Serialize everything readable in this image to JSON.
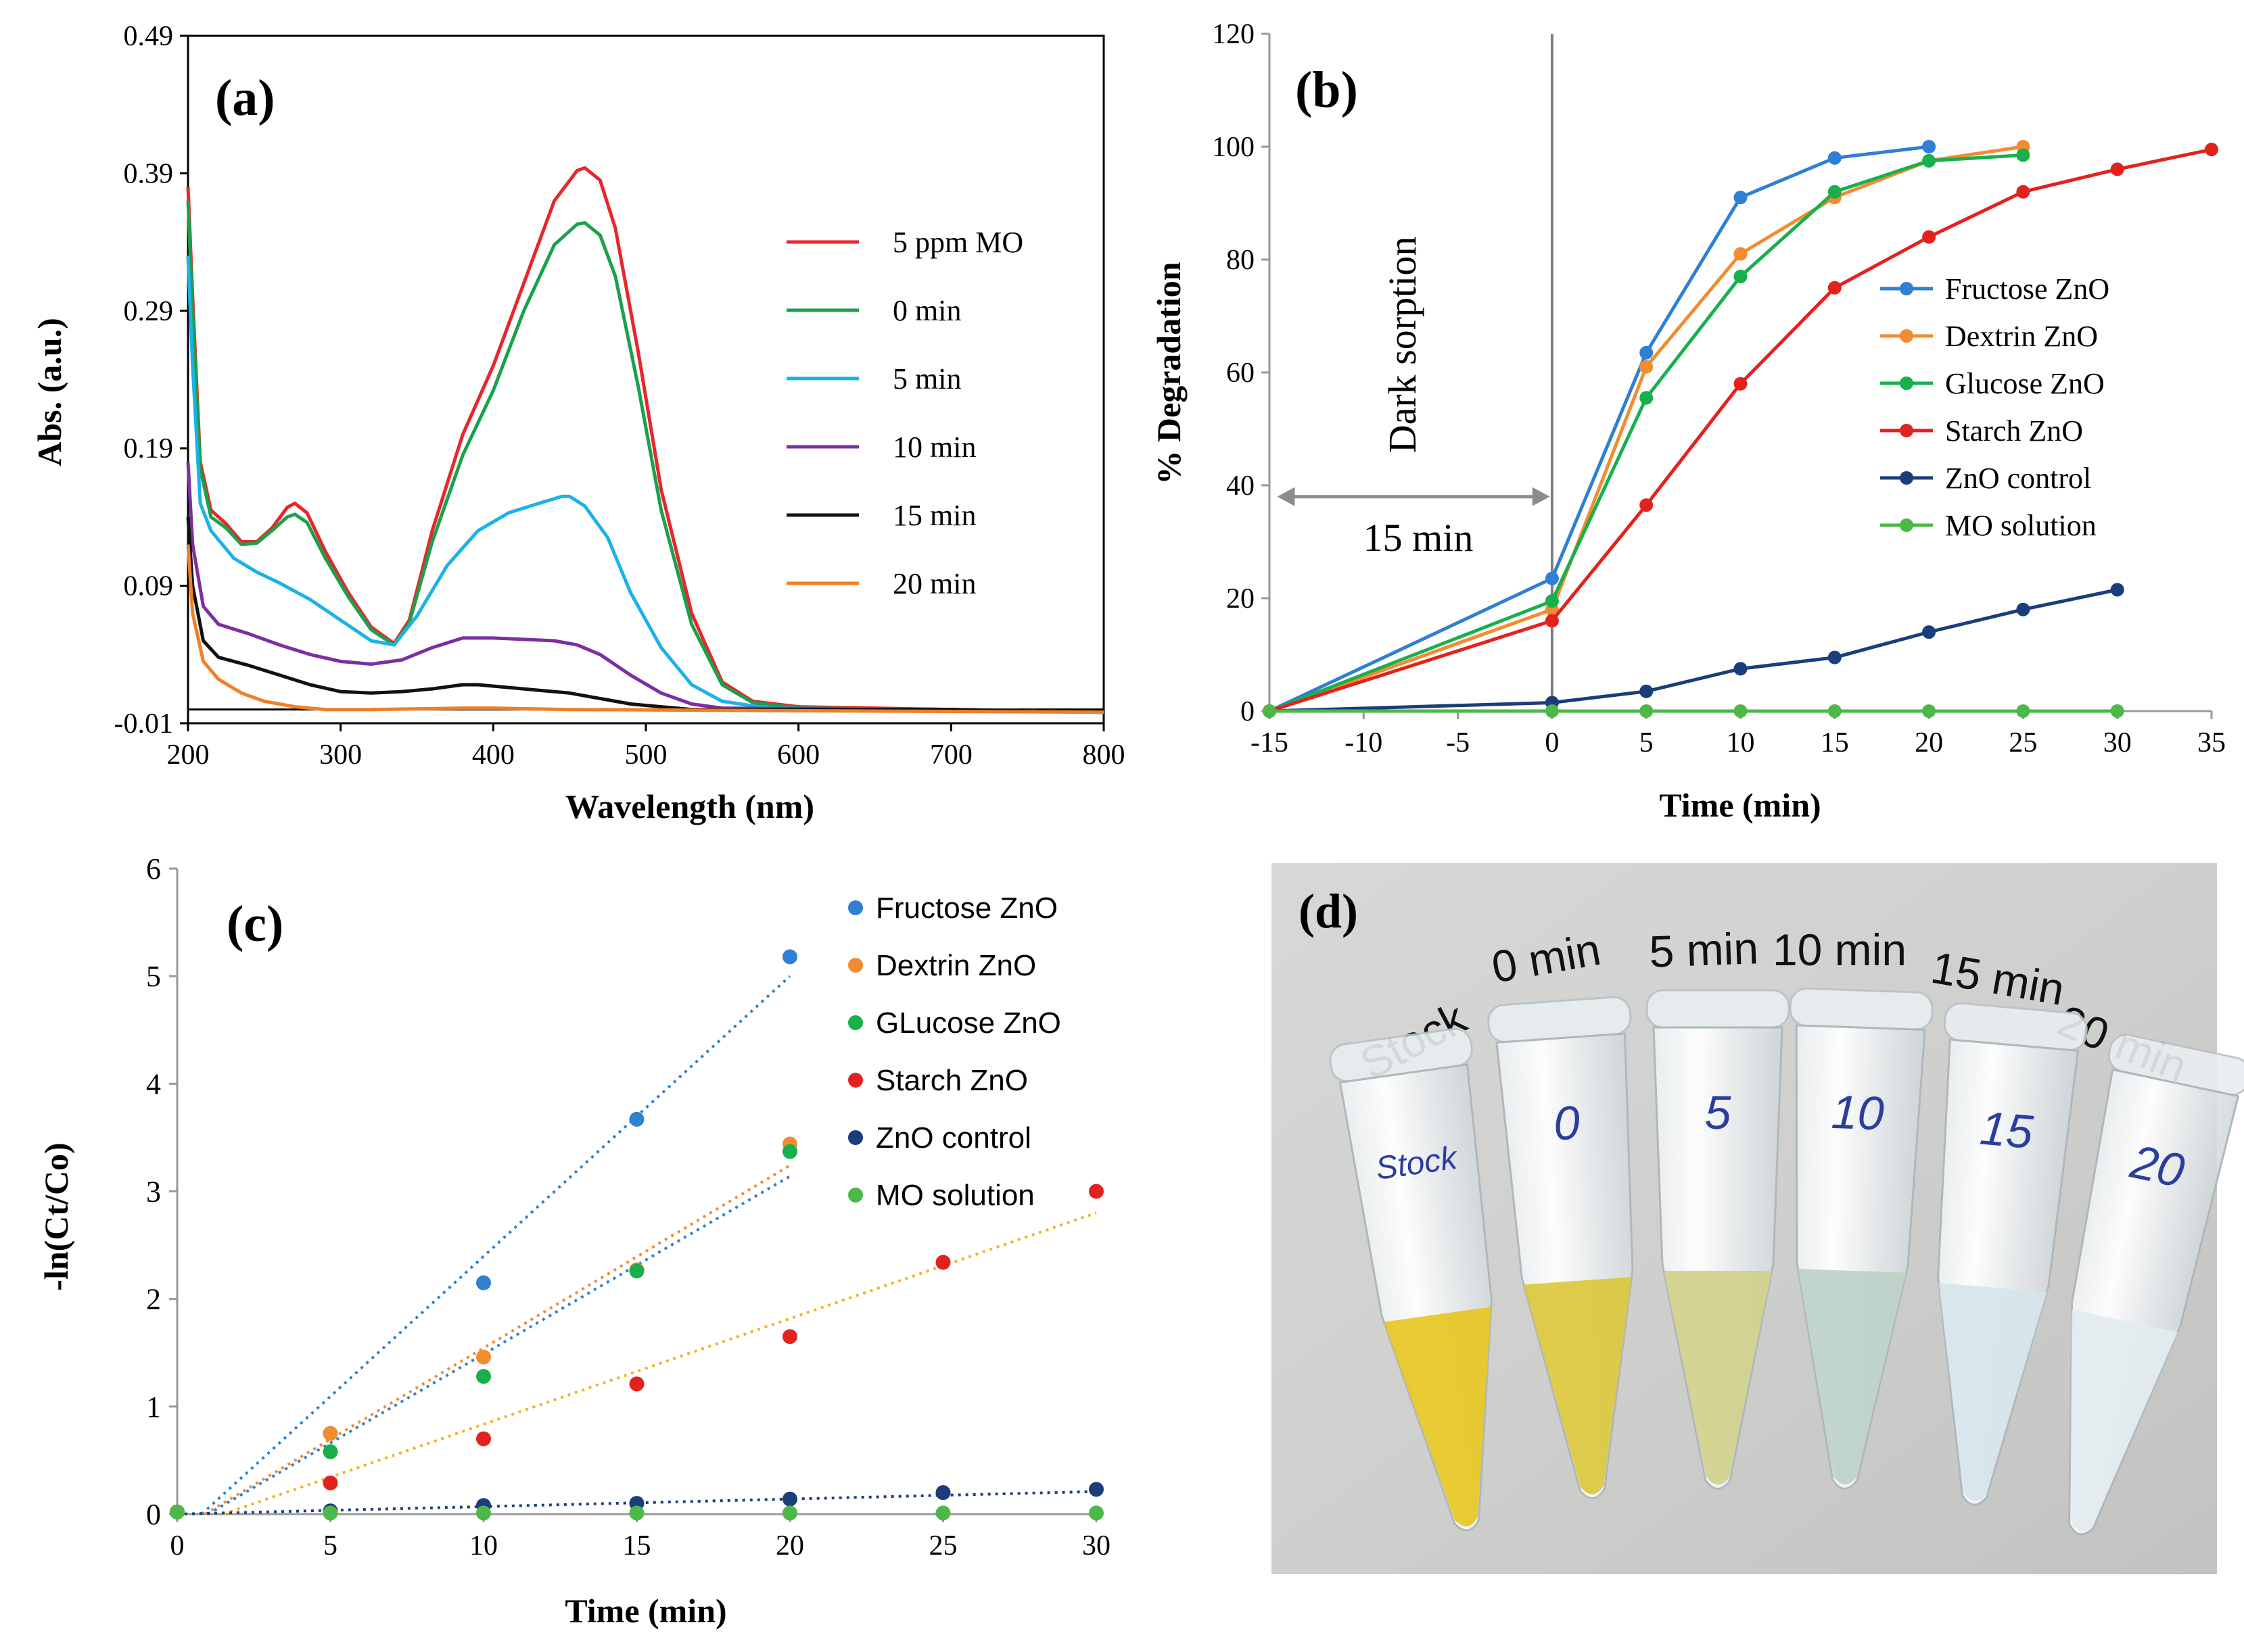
{
  "chart_data": [
    {
      "id": "a",
      "panel_label": "(a)",
      "type": "line",
      "xlabel": "Wavelength (nm)",
      "ylabel": "Abs. (a.u.)",
      "xlim": [
        200,
        800
      ],
      "ylim": [
        -0.01,
        0.49
      ],
      "xticks": [
        "200",
        "300",
        "400",
        "500",
        "600",
        "700",
        "800"
      ],
      "yticks": [
        "-0.01",
        "0.09",
        "0.19",
        "0.29",
        "0.39",
        "0.49"
      ],
      "series": [
        {
          "name": "5 ppm MO",
          "color": "#e8262b",
          "points": [
            [
              200,
              0.38
            ],
            [
              203,
              0.3
            ],
            [
              208,
              0.18
            ],
            [
              215,
              0.145
            ],
            [
              225,
              0.135
            ],
            [
              235,
              0.122
            ],
            [
              245,
              0.122
            ],
            [
              255,
              0.132
            ],
            [
              265,
              0.147
            ],
            [
              270,
              0.15
            ],
            [
              278,
              0.143
            ],
            [
              290,
              0.115
            ],
            [
              305,
              0.085
            ],
            [
              320,
              0.06
            ],
            [
              335,
              0.048
            ],
            [
              345,
              0.065
            ],
            [
              360,
              0.13
            ],
            [
              380,
              0.2
            ],
            [
              400,
              0.25
            ],
            [
              420,
              0.31
            ],
            [
              440,
              0.37
            ],
            [
              455,
              0.392
            ],
            [
              460,
              0.394
            ],
            [
              470,
              0.385
            ],
            [
              480,
              0.35
            ],
            [
              495,
              0.26
            ],
            [
              510,
              0.16
            ],
            [
              530,
              0.07
            ],
            [
              550,
              0.02
            ],
            [
              570,
              0.006
            ],
            [
              600,
              0.002
            ],
            [
              700,
              0.0
            ],
            [
              800,
              -0.002
            ]
          ]
        },
        {
          "name": "0 min",
          "color": "#1aa14b",
          "points": [
            [
              200,
              0.37
            ],
            [
              203,
              0.29
            ],
            [
              208,
              0.175
            ],
            [
              215,
              0.14
            ],
            [
              225,
              0.132
            ],
            [
              235,
              0.12
            ],
            [
              245,
              0.121
            ],
            [
              255,
              0.13
            ],
            [
              265,
              0.14
            ],
            [
              270,
              0.142
            ],
            [
              278,
              0.136
            ],
            [
              290,
              0.11
            ],
            [
              305,
              0.082
            ],
            [
              320,
              0.058
            ],
            [
              335,
              0.047
            ],
            [
              345,
              0.063
            ],
            [
              360,
              0.122
            ],
            [
              380,
              0.185
            ],
            [
              400,
              0.232
            ],
            [
              420,
              0.29
            ],
            [
              440,
              0.338
            ],
            [
              455,
              0.353
            ],
            [
              460,
              0.354
            ],
            [
              470,
              0.345
            ],
            [
              480,
              0.315
            ],
            [
              495,
              0.235
            ],
            [
              510,
              0.145
            ],
            [
              530,
              0.062
            ],
            [
              550,
              0.018
            ],
            [
              570,
              0.005
            ],
            [
              600,
              0.001
            ],
            [
              700,
              0.0
            ],
            [
              800,
              -0.002
            ]
          ]
        },
        {
          "name": "5 min",
          "color": "#1ab2e8",
          "points": [
            [
              200,
              0.33
            ],
            [
              203,
              0.25
            ],
            [
              208,
              0.15
            ],
            [
              215,
              0.13
            ],
            [
              230,
              0.11
            ],
            [
              245,
              0.1
            ],
            [
              260,
              0.092
            ],
            [
              280,
              0.08
            ],
            [
              300,
              0.065
            ],
            [
              320,
              0.05
            ],
            [
              335,
              0.047
            ],
            [
              350,
              0.068
            ],
            [
              370,
              0.105
            ],
            [
              390,
              0.13
            ],
            [
              410,
              0.143
            ],
            [
              430,
              0.15
            ],
            [
              445,
              0.155
            ],
            [
              450,
              0.155
            ],
            [
              460,
              0.148
            ],
            [
              475,
              0.125
            ],
            [
              490,
              0.085
            ],
            [
              510,
              0.045
            ],
            [
              530,
              0.018
            ],
            [
              550,
              0.006
            ],
            [
              580,
              0.001
            ],
            [
              700,
              0.0
            ],
            [
              800,
              -0.002
            ]
          ]
        },
        {
          "name": "10 min",
          "color": "#7b2fa3",
          "points": [
            [
              200,
              0.18
            ],
            [
              203,
              0.12
            ],
            [
              210,
              0.075
            ],
            [
              220,
              0.062
            ],
            [
              240,
              0.055
            ],
            [
              260,
              0.047
            ],
            [
              280,
              0.04
            ],
            [
              300,
              0.035
            ],
            [
              320,
              0.033
            ],
            [
              340,
              0.036
            ],
            [
              360,
              0.045
            ],
            [
              380,
              0.052
            ],
            [
              400,
              0.052
            ],
            [
              420,
              0.051
            ],
            [
              440,
              0.05
            ],
            [
              455,
              0.047
            ],
            [
              470,
              0.04
            ],
            [
              490,
              0.025
            ],
            [
              510,
              0.012
            ],
            [
              530,
              0.004
            ],
            [
              550,
              0.001
            ],
            [
              700,
              0.0
            ],
            [
              800,
              -0.002
            ]
          ]
        },
        {
          "name": "15 min",
          "color": "#111111",
          "points": [
            [
              200,
              0.14
            ],
            [
              203,
              0.09
            ],
            [
              210,
              0.05
            ],
            [
              220,
              0.038
            ],
            [
              240,
              0.032
            ],
            [
              260,
              0.025
            ],
            [
              280,
              0.018
            ],
            [
              300,
              0.013
            ],
            [
              320,
              0.012
            ],
            [
              340,
              0.013
            ],
            [
              360,
              0.015
            ],
            [
              380,
              0.018
            ],
            [
              390,
              0.018
            ],
            [
              410,
              0.016
            ],
            [
              430,
              0.014
            ],
            [
              450,
              0.012
            ],
            [
              470,
              0.008
            ],
            [
              490,
              0.004
            ],
            [
              510,
              0.002
            ],
            [
              530,
              0.0
            ],
            [
              700,
              0.0
            ],
            [
              800,
              -0.002
            ]
          ]
        },
        {
          "name": "20 min",
          "color": "#f07f26",
          "points": [
            [
              200,
              0.12
            ],
            [
              203,
              0.07
            ],
            [
              210,
              0.035
            ],
            [
              220,
              0.022
            ],
            [
              235,
              0.012
            ],
            [
              250,
              0.006
            ],
            [
              270,
              0.002
            ],
            [
              290,
              0.0
            ],
            [
              320,
              0.0
            ],
            [
              380,
              0.001
            ],
            [
              400,
              0.001
            ],
            [
              450,
              0.0
            ],
            [
              800,
              -0.002
            ]
          ]
        }
      ],
      "legend": [
        "5 ppm MO",
        "0 min",
        "5 min",
        "10 min",
        "15 min",
        "20 min"
      ]
    },
    {
      "id": "b",
      "panel_label": "(b)",
      "type": "line",
      "xlabel": "Time (min)",
      "ylabel": "% Degradation",
      "xlim": [
        -15,
        35
      ],
      "ylim": [
        0,
        120
      ],
      "xticks": [
        "-15",
        "-10",
        "-5",
        "0",
        "5",
        "10",
        "15",
        "20",
        "25",
        "30",
        "35"
      ],
      "yticks": [
        "0",
        "20",
        "40",
        "60",
        "80",
        "100",
        "120"
      ],
      "annotations": {
        "dark_sorption": "Dark sorption",
        "interval": "15 min"
      },
      "series": [
        {
          "name": "Fructose ZnO",
          "color": "#2f7fd2",
          "x": [
            -15,
            0,
            5,
            10,
            15,
            20
          ],
          "y": [
            0,
            23.5,
            63.5,
            91,
            98,
            100
          ]
        },
        {
          "name": "Dextrin ZnO",
          "color": "#f28c30",
          "x": [
            -15,
            0,
            5,
            10,
            15,
            20,
            25
          ],
          "y": [
            0,
            18,
            61,
            81,
            91,
            97.5,
            100
          ]
        },
        {
          "name": "Glucose ZnO",
          "color": "#17b04c",
          "x": [
            -15,
            0,
            5,
            10,
            15,
            20,
            25
          ],
          "y": [
            0,
            19.5,
            55.5,
            77,
            92,
            97.5,
            98.5
          ]
        },
        {
          "name": "Starch ZnO",
          "color": "#e3221e",
          "x": [
            -15,
            0,
            5,
            10,
            15,
            20,
            25,
            30,
            35
          ],
          "y": [
            0,
            16,
            36.5,
            58,
            75,
            84,
            92,
            96,
            99.5
          ]
        },
        {
          "name": "ZnO control",
          "color": "#1a3e7a",
          "x": [
            -15,
            0,
            5,
            10,
            15,
            20,
            25,
            30
          ],
          "y": [
            0,
            1.5,
            3.5,
            7.5,
            9.5,
            14,
            18,
            21.5
          ]
        },
        {
          "name": "MO solution",
          "color": "#4cb848",
          "x": [
            -15,
            0,
            5,
            10,
            15,
            20,
            25,
            30
          ],
          "y": [
            0,
            0,
            0,
            0,
            0,
            0,
            0,
            0
          ]
        }
      ],
      "legend": [
        "Fructose ZnO",
        "Dextrin ZnO",
        "Glucose ZnO",
        "Starch ZnO",
        "ZnO control",
        "MO solution"
      ]
    },
    {
      "id": "c",
      "panel_label": "(c)",
      "type": "scatter",
      "xlabel": "Time (min)",
      "ylabel": "-ln(Ct/Co)",
      "xlim": [
        0,
        30
      ],
      "ylim": [
        0,
        6
      ],
      "xticks": [
        "0",
        "5",
        "10",
        "15",
        "20",
        "25",
        "30"
      ],
      "yticks": [
        "0",
        "1",
        "2",
        "3",
        "4",
        "5",
        "6"
      ],
      "series": [
        {
          "name": "Fructose ZnO",
          "color": "#2f7fd2",
          "x": [
            0,
            5,
            10,
            15,
            20
          ],
          "y": [
            0.02,
            0.75,
            2.15,
            3.67,
            5.18
          ],
          "fit": [
            [
              0.8,
              0
            ],
            [
              20,
              5.0
            ]
          ]
        },
        {
          "name": "Dextrin ZnO",
          "color": "#f28c30",
          "x": [
            0,
            5,
            10,
            15,
            20
          ],
          "y": [
            0.02,
            0.75,
            1.46,
            2.27,
            3.44
          ],
          "fit": [
            [
              0.9,
              0
            ],
            [
              20,
              3.24
            ]
          ]
        },
        {
          "name": "GLucose ZnO",
          "color": "#17b04c",
          "x": [
            0,
            5,
            10,
            15,
            20
          ],
          "y": [
            0.02,
            0.58,
            1.28,
            2.26,
            3.37
          ],
          "fit": [
            [
              1.0,
              0
            ],
            [
              20,
              3.14
            ]
          ]
        },
        {
          "name": "Starch ZnO",
          "color": "#e3221e",
          "x": [
            0,
            5,
            10,
            15,
            20,
            25,
            30
          ],
          "y": [
            0.02,
            0.29,
            0.7,
            1.21,
            1.65,
            2.34,
            3.0
          ],
          "fit": [
            [
              1.5,
              0
            ],
            [
              30,
              2.8
            ]
          ]
        },
        {
          "name": "ZnO control",
          "color": "#1a3e7a",
          "x": [
            0,
            5,
            10,
            15,
            20,
            25,
            30
          ],
          "y": [
            0.02,
            0.03,
            0.08,
            0.1,
            0.14,
            0.2,
            0.23
          ],
          "fit": [
            [
              0,
              0
            ],
            [
              30,
              0.21
            ]
          ]
        },
        {
          "name": "MO solution",
          "color": "#4cb848",
          "x": [
            0,
            5,
            10,
            15,
            20,
            25,
            30
          ],
          "y": [
            0.02,
            0.01,
            0.01,
            0.01,
            0.01,
            0.01,
            0.01
          ]
        }
      ],
      "fit_colors": {
        "Fructose ZnO": "#2f7fd2",
        "Dextrin ZnO": "#f28c30",
        "GLucose ZnO": "#2f7fd2",
        "Starch ZnO": "#f5b21e",
        "ZnO control": "#1a3e7a"
      },
      "legend": [
        "Fructose ZnO",
        "Dextrin ZnO",
        "GLucose ZnO",
        "Starch ZnO",
        "ZnO control",
        "MO solution"
      ]
    }
  ],
  "photo": {
    "panel_label": "(d)",
    "labels": [
      "Stock",
      "0 min",
      "5 min",
      "10 min",
      "15 min",
      "20 min"
    ],
    "tube_marks": [
      "Stock",
      "0",
      "5",
      "10",
      "15",
      "20"
    ],
    "liquid_colors": [
      "#e7c51e",
      "#dcc63a",
      "#cfd08a",
      "#bcd2c8",
      "#d6e4ea",
      "#e2ebf0"
    ]
  }
}
